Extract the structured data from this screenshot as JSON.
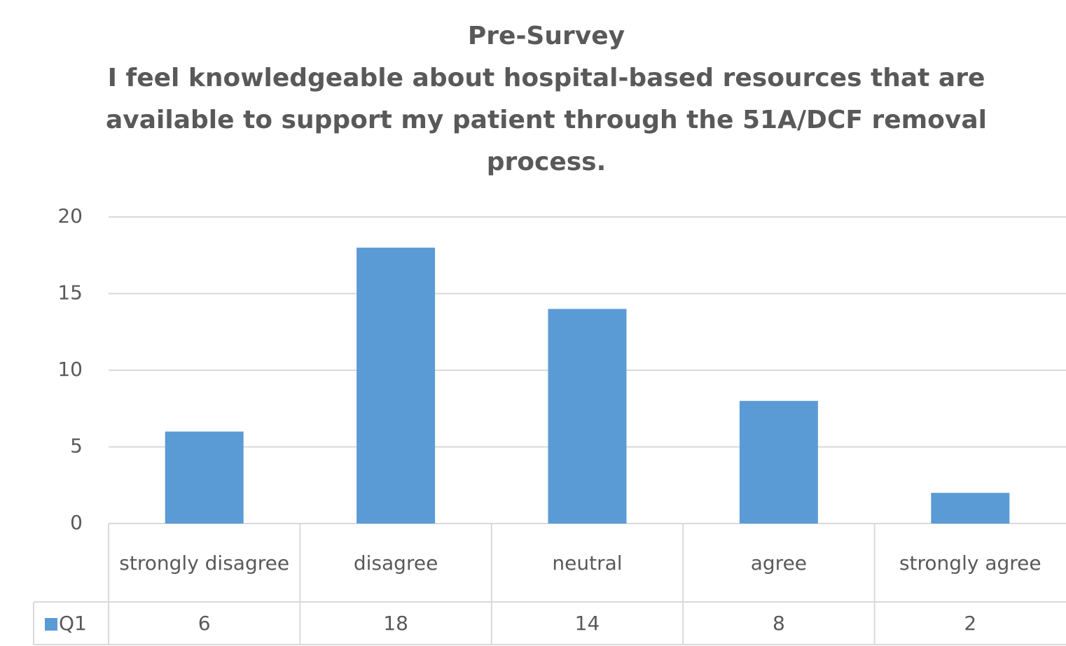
{
  "chart_data": {
    "type": "bar",
    "title": "Pre-Survey",
    "subtitle": "I feel knowledgeable about hospital-based resources that are available to support my patient through the 51A/DCF removal process.",
    "categories": [
      "strongly disagree",
      "disagree",
      "neutral",
      "agree",
      "strongly agree"
    ],
    "series": [
      {
        "name": "Q1",
        "color": "#5b9bd5",
        "values": [
          6,
          18,
          14,
          8,
          2
        ]
      }
    ],
    "ylim": [
      0,
      20
    ],
    "yticks": [
      0,
      5,
      10,
      15,
      20
    ],
    "grid": true
  }
}
